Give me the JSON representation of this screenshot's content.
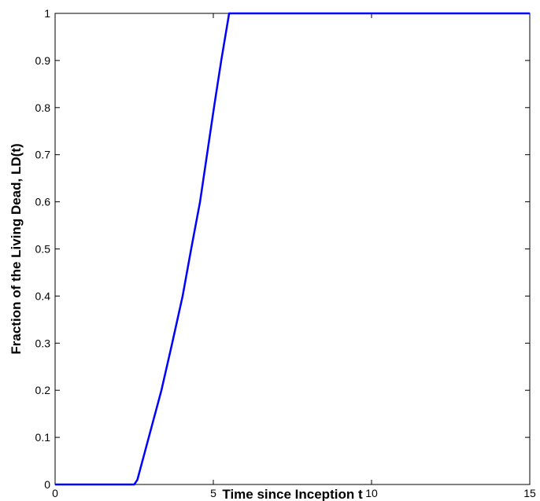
{
  "chart_data": {
    "type": "line",
    "xlabel": "Time since Inception t",
    "ylabel": "Fraction of the Living Dead, LD(t)",
    "x": [
      0,
      2.5,
      2.6,
      2.8,
      3.0,
      3.36,
      3.7,
      4.03,
      4.3,
      4.58,
      4.8,
      5.02,
      5.25,
      5.5,
      15
    ],
    "series": [
      {
        "name": "LD(t)",
        "color": "#0000ff",
        "values": [
          0,
          0,
          0.01,
          0.06,
          0.11,
          0.2,
          0.3,
          0.4,
          0.5,
          0.6,
          0.7,
          0.8,
          0.9,
          1,
          1
        ]
      }
    ],
    "xlim": [
      0,
      15
    ],
    "xticks": [
      0,
      5,
      10,
      15
    ],
    "ylim": [
      0,
      1
    ],
    "yticks": [
      0,
      0.1,
      0.2,
      0.3,
      0.4,
      0.5,
      0.6,
      0.7,
      0.8,
      0.9,
      1
    ],
    "grid": false
  }
}
